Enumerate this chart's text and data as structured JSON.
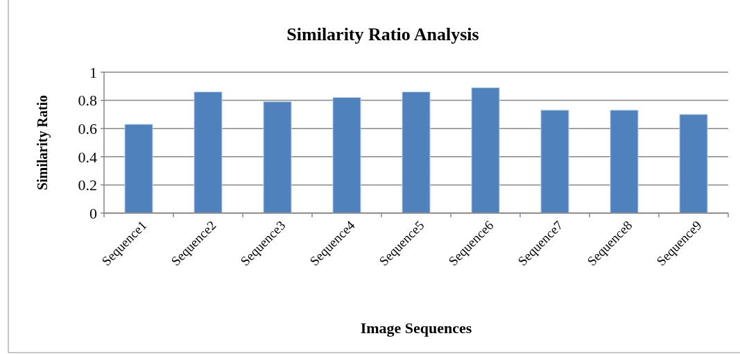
{
  "chart_data": {
    "type": "bar",
    "title": "Similarity Ratio Analysis",
    "xlabel": "Image Sequences",
    "ylabel": "Similarity Ratio",
    "categories": [
      "Sequence1",
      "Sequence2",
      "Sequence3",
      "Sequence4",
      "Sequence5",
      "Sequence6",
      "Sequence7",
      "Sequence8",
      "Sequence9"
    ],
    "values": [
      0.63,
      0.86,
      0.79,
      0.82,
      0.86,
      0.89,
      0.73,
      0.73,
      0.7
    ],
    "color": "#4f81bd",
    "ylim": [
      0,
      1
    ],
    "yticks": [
      0,
      0.2,
      0.4,
      0.6,
      0.8,
      1
    ],
    "grid": "y"
  }
}
